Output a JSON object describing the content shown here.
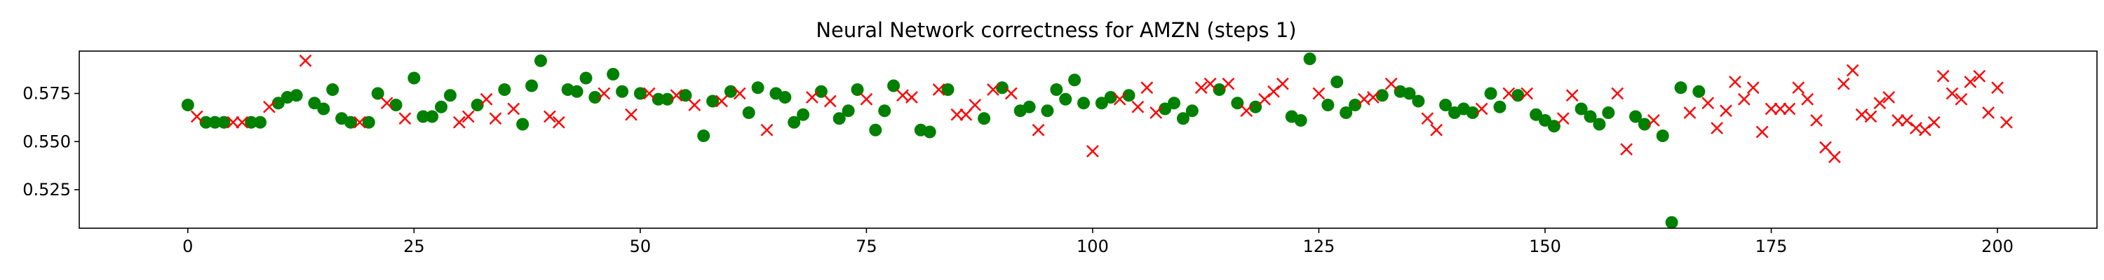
{
  "chart_data": {
    "type": "scatter",
    "title": "Neural Network correctness for AMZN (steps 1)",
    "xlabel": "",
    "ylabel": "",
    "xlim": [
      -12,
      211
    ],
    "ylim": [
      0.505,
      0.597
    ],
    "x_ticks": [
      0,
      25,
      50,
      75,
      100,
      125,
      150,
      175,
      200
    ],
    "x_tick_labels": [
      "0",
      "25",
      "50",
      "75",
      "100",
      "125",
      "150",
      "175",
      "200"
    ],
    "y_ticks": [
      0.525,
      0.55,
      0.575
    ],
    "y_tick_labels": [
      "0.525",
      "0.550",
      "0.575"
    ],
    "grid": false,
    "legend": "none",
    "series": [
      {
        "marker": "circle",
        "color": "#008000",
        "points": [
          [
            0,
            0.569
          ],
          [
            2,
            0.56
          ],
          [
            3,
            0.56
          ],
          [
            4,
            0.56
          ],
          [
            7,
            0.56
          ],
          [
            8,
            0.56
          ],
          [
            10,
            0.57
          ],
          [
            11,
            0.573
          ],
          [
            12,
            0.574
          ],
          [
            14,
            0.57
          ],
          [
            15,
            0.567
          ],
          [
            16,
            0.577
          ],
          [
            17,
            0.562
          ],
          [
            18,
            0.56
          ],
          [
            20,
            0.56
          ],
          [
            21,
            0.575
          ],
          [
            23,
            0.569
          ],
          [
            25,
            0.583
          ],
          [
            26,
            0.563
          ],
          [
            27,
            0.563
          ],
          [
            28,
            0.568
          ],
          [
            29,
            0.574
          ],
          [
            32,
            0.569
          ],
          [
            35,
            0.577
          ],
          [
            37,
            0.559
          ],
          [
            38,
            0.579
          ],
          [
            39,
            0.592
          ],
          [
            42,
            0.577
          ],
          [
            43,
            0.576
          ],
          [
            44,
            0.583
          ],
          [
            45,
            0.573
          ],
          [
            47,
            0.585
          ],
          [
            48,
            0.576
          ],
          [
            50,
            0.575
          ],
          [
            52,
            0.572
          ],
          [
            53,
            0.572
          ],
          [
            55,
            0.574
          ],
          [
            57,
            0.553
          ],
          [
            58,
            0.571
          ],
          [
            60,
            0.576
          ],
          [
            62,
            0.565
          ],
          [
            63,
            0.578
          ],
          [
            65,
            0.575
          ],
          [
            66,
            0.573
          ],
          [
            67,
            0.56
          ],
          [
            68,
            0.564
          ],
          [
            70,
            0.576
          ],
          [
            72,
            0.562
          ],
          [
            73,
            0.566
          ],
          [
            74,
            0.577
          ],
          [
            76,
            0.556
          ],
          [
            77,
            0.566
          ],
          [
            78,
            0.579
          ],
          [
            81,
            0.556
          ],
          [
            82,
            0.555
          ],
          [
            84,
            0.577
          ],
          [
            88,
            0.562
          ],
          [
            90,
            0.578
          ],
          [
            92,
            0.566
          ],
          [
            93,
            0.568
          ],
          [
            95,
            0.566
          ],
          [
            96,
            0.577
          ],
          [
            97,
            0.572
          ],
          [
            98,
            0.582
          ],
          [
            99,
            0.57
          ],
          [
            101,
            0.57
          ],
          [
            102,
            0.573
          ],
          [
            104,
            0.574
          ],
          [
            108,
            0.567
          ],
          [
            109,
            0.57
          ],
          [
            110,
            0.562
          ],
          [
            111,
            0.566
          ],
          [
            114,
            0.577
          ],
          [
            116,
            0.57
          ],
          [
            118,
            0.568
          ],
          [
            122,
            0.563
          ],
          [
            123,
            0.561
          ],
          [
            124,
            0.593
          ],
          [
            126,
            0.569
          ],
          [
            127,
            0.581
          ],
          [
            128,
            0.565
          ],
          [
            129,
            0.569
          ],
          [
            132,
            0.574
          ],
          [
            134,
            0.576
          ],
          [
            135,
            0.575
          ],
          [
            136,
            0.571
          ],
          [
            139,
            0.569
          ],
          [
            140,
            0.565
          ],
          [
            141,
            0.567
          ],
          [
            142,
            0.565
          ],
          [
            144,
            0.575
          ],
          [
            145,
            0.568
          ],
          [
            147,
            0.574
          ],
          [
            149,
            0.564
          ],
          [
            150,
            0.561
          ],
          [
            151,
            0.558
          ],
          [
            154,
            0.567
          ],
          [
            155,
            0.563
          ],
          [
            156,
            0.559
          ],
          [
            157,
            0.565
          ],
          [
            160,
            0.563
          ],
          [
            161,
            0.559
          ],
          [
            163,
            0.553
          ],
          [
            164,
            0.508
          ],
          [
            165,
            0.578
          ],
          [
            167,
            0.576
          ]
        ]
      },
      {
        "marker": "x",
        "color": "#ff0000",
        "points": [
          [
            1,
            0.563
          ],
          [
            5,
            0.56
          ],
          [
            6,
            0.56
          ],
          [
            9,
            0.568
          ],
          [
            13,
            0.592
          ],
          [
            19,
            0.56
          ],
          [
            22,
            0.57
          ],
          [
            24,
            0.562
          ],
          [
            30,
            0.56
          ],
          [
            31,
            0.563
          ],
          [
            33,
            0.572
          ],
          [
            34,
            0.562
          ],
          [
            36,
            0.567
          ],
          [
            40,
            0.563
          ],
          [
            41,
            0.56
          ],
          [
            46,
            0.575
          ],
          [
            49,
            0.564
          ],
          [
            51,
            0.575
          ],
          [
            54,
            0.574
          ],
          [
            56,
            0.569
          ],
          [
            59,
            0.571
          ],
          [
            61,
            0.575
          ],
          [
            64,
            0.556
          ],
          [
            69,
            0.573
          ],
          [
            71,
            0.571
          ],
          [
            75,
            0.572
          ],
          [
            79,
            0.574
          ],
          [
            80,
            0.573
          ],
          [
            83,
            0.577
          ],
          [
            85,
            0.564
          ],
          [
            86,
            0.564
          ],
          [
            87,
            0.569
          ],
          [
            89,
            0.577
          ],
          [
            91,
            0.575
          ],
          [
            94,
            0.556
          ],
          [
            100,
            0.545
          ],
          [
            103,
            0.572
          ],
          [
            105,
            0.568
          ],
          [
            106,
            0.578
          ],
          [
            107,
            0.565
          ],
          [
            112,
            0.578
          ],
          [
            113,
            0.58
          ],
          [
            115,
            0.58
          ],
          [
            117,
            0.566
          ],
          [
            119,
            0.572
          ],
          [
            120,
            0.576
          ],
          [
            121,
            0.58
          ],
          [
            125,
            0.575
          ],
          [
            130,
            0.572
          ],
          [
            131,
            0.573
          ],
          [
            133,
            0.58
          ],
          [
            137,
            0.562
          ],
          [
            138,
            0.556
          ],
          [
            143,
            0.567
          ],
          [
            146,
            0.575
          ],
          [
            148,
            0.575
          ],
          [
            152,
            0.562
          ],
          [
            153,
            0.574
          ],
          [
            158,
            0.575
          ],
          [
            159,
            0.546
          ],
          [
            162,
            0.561
          ],
          [
            166,
            0.565
          ],
          [
            168,
            0.57
          ],
          [
            169,
            0.557
          ],
          [
            170,
            0.566
          ],
          [
            171,
            0.581
          ],
          [
            172,
            0.572
          ],
          [
            173,
            0.578
          ],
          [
            174,
            0.555
          ],
          [
            175,
            0.567
          ],
          [
            176,
            0.567
          ],
          [
            177,
            0.567
          ],
          [
            178,
            0.578
          ],
          [
            179,
            0.572
          ],
          [
            180,
            0.561
          ],
          [
            181,
            0.547
          ],
          [
            182,
            0.542
          ],
          [
            183,
            0.58
          ],
          [
            184,
            0.587
          ],
          [
            185,
            0.564
          ],
          [
            186,
            0.563
          ],
          [
            187,
            0.57
          ],
          [
            188,
            0.573
          ],
          [
            189,
            0.561
          ],
          [
            190,
            0.561
          ],
          [
            191,
            0.557
          ],
          [
            192,
            0.556
          ],
          [
            193,
            0.56
          ],
          [
            194,
            0.584
          ],
          [
            195,
            0.575
          ],
          [
            196,
            0.572
          ],
          [
            197,
            0.581
          ],
          [
            198,
            0.584
          ],
          [
            199,
            0.565
          ],
          [
            200,
            0.578
          ],
          [
            201,
            0.56
          ]
        ]
      }
    ]
  }
}
